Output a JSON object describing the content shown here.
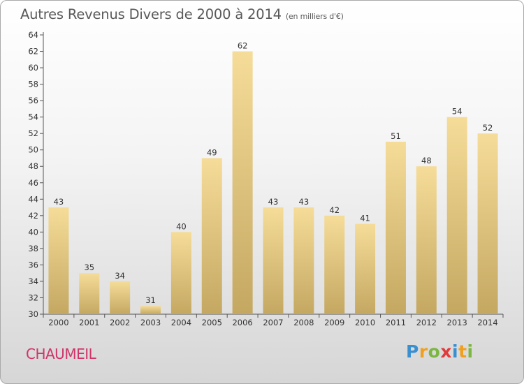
{
  "header": {
    "title": "Autres Revenus Divers de 2000 à 2014",
    "unit": "(en milliers d'€)"
  },
  "footer": {
    "commune": "CHAUMEIL",
    "logo": {
      "parts": [
        {
          "text": "P",
          "color": "#3a8fd1"
        },
        {
          "text": "r",
          "color": "#f0a020"
        },
        {
          "text": "o",
          "color": "#7ab640"
        },
        {
          "text": "x",
          "color": "#e23a3a"
        },
        {
          "text": "i",
          "color": "#3a8fd1"
        },
        {
          "text": "t",
          "color": "#f0a020"
        },
        {
          "text": "i",
          "color": "#7ab640"
        }
      ]
    }
  },
  "chart_data": {
    "type": "bar",
    "title": "Autres Revenus Divers de 2000 à 2014",
    "xlabel": "",
    "ylabel": "",
    "categories": [
      "2000",
      "2001",
      "2002",
      "2003",
      "2004",
      "2005",
      "2006",
      "2007",
      "2008",
      "2009",
      "2010",
      "2011",
      "2012",
      "2013",
      "2014"
    ],
    "values": [
      43,
      35,
      34,
      31,
      40,
      49,
      62,
      43,
      43,
      42,
      41,
      51,
      48,
      54,
      52
    ],
    "ylim": [
      30,
      64
    ],
    "yticks": [
      30,
      32,
      34,
      36,
      38,
      40,
      42,
      44,
      46,
      48,
      50,
      52,
      54,
      56,
      58,
      60,
      62,
      64
    ],
    "grid": false,
    "legend": "none",
    "colors": {
      "bar_top": "#f5dc98",
      "bar_bottom": "#c4a862",
      "axis": "#555555"
    }
  }
}
